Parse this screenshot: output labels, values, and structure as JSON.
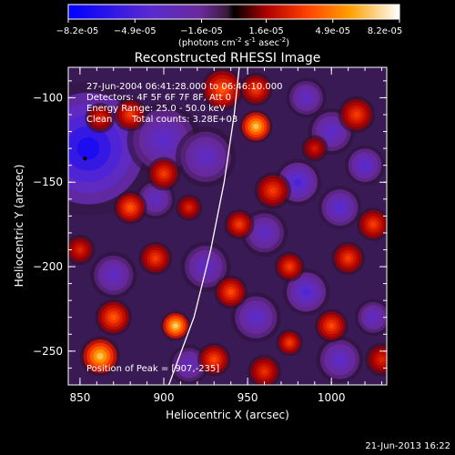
{
  "chart_data": {
    "type": "heatmap",
    "title": "Reconstructed RHESSI Image",
    "xlabel": "Heliocentric X (arcsec)",
    "ylabel": "Heliocentric Y (arcsec)",
    "xlim": [
      843,
      1033
    ],
    "ylim": [
      -270,
      -82
    ],
    "x_ticks": [
      850,
      900,
      950,
      1000
    ],
    "y_ticks": [
      -100,
      -150,
      -200,
      -250
    ],
    "colorbar": {
      "range": [
        -8.2e-05,
        8.2e-05
      ],
      "ticks": [
        "-8.2e-05",
        "-4.9e-05",
        "-1.6e-05",
        "1.6e-05",
        "4.9e-05",
        "8.2e-05"
      ],
      "unit_prefix": "(photons cm",
      "unit_exp1": "-2",
      "unit_s": " s",
      "unit_exp2": "-1",
      "unit_asec": " asec",
      "unit_exp3": "-2",
      "unit_close": ")",
      "colors": [
        "#0000ff",
        "#5a2ad0",
        "#6a2a9a",
        "#3a1a3a",
        "#000000",
        "#b00000",
        "#ff4000",
        "#ffa000",
        "#ffffff"
      ]
    },
    "annotations": {
      "time_range": "27-Jun-2004 06:41:28.000 to 06:46:10.000",
      "detectors": "Detectors: 4F 5F 6F 7F 8F, Att 0",
      "energy": "Energy Range: 25.0 - 50.0 keV",
      "clean_label": "Clean",
      "total_counts": "Total counts: 3.28E+03",
      "peak": "Position of Peak = [907,-235]"
    },
    "peak": {
      "x": 907,
      "y": -235
    },
    "marker": {
      "x": 853,
      "y": -136
    },
    "limb_curve": [
      [
        903,
        -270
      ],
      [
        918,
        -230
      ],
      [
        928,
        -190
      ],
      [
        936,
        -150
      ],
      [
        942,
        -110
      ],
      [
        945,
        -82
      ]
    ],
    "blobs": [
      {
        "x": 855,
        "y": -130,
        "v": -1.0,
        "r": 40
      },
      {
        "x": 900,
        "y": -125,
        "v": -0.55,
        "r": 22
      },
      {
        "x": 925,
        "y": -135,
        "v": -0.5,
        "r": 18
      },
      {
        "x": 980,
        "y": -150,
        "v": -0.7,
        "r": 14
      },
      {
        "x": 1000,
        "y": -120,
        "v": -0.55,
        "r": 14
      },
      {
        "x": 1005,
        "y": -165,
        "v": -0.6,
        "r": 13
      },
      {
        "x": 985,
        "y": -100,
        "v": -0.5,
        "r": 12
      },
      {
        "x": 1020,
        "y": -140,
        "v": -0.6,
        "r": 12
      },
      {
        "x": 870,
        "y": -205,
        "v": -0.5,
        "r": 14
      },
      {
        "x": 925,
        "y": -200,
        "v": -0.5,
        "r": 15
      },
      {
        "x": 955,
        "y": -230,
        "v": -0.55,
        "r": 15
      },
      {
        "x": 985,
        "y": -215,
        "v": -0.65,
        "r": 14
      },
      {
        "x": 1005,
        "y": -255,
        "v": -0.55,
        "r": 14
      },
      {
        "x": 915,
        "y": -258,
        "v": -0.45,
        "r": 12
      },
      {
        "x": 960,
        "y": -180,
        "v": -0.5,
        "r": 14
      },
      {
        "x": 895,
        "y": -160,
        "v": -0.5,
        "r": 12
      },
      {
        "x": 1025,
        "y": -230,
        "v": -0.5,
        "r": 11
      },
      {
        "x": 955,
        "y": -117,
        "v": 0.95,
        "r": 10
      },
      {
        "x": 935,
        "y": -95,
        "v": 0.6,
        "r": 13
      },
      {
        "x": 955,
        "y": -95,
        "v": 0.5,
        "r": 10
      },
      {
        "x": 880,
        "y": -110,
        "v": 0.5,
        "r": 10
      },
      {
        "x": 862,
        "y": -112,
        "v": 0.4,
        "r": 9
      },
      {
        "x": 900,
        "y": -145,
        "v": 0.5,
        "r": 10
      },
      {
        "x": 880,
        "y": -165,
        "v": 0.6,
        "r": 10
      },
      {
        "x": 915,
        "y": -165,
        "v": 0.4,
        "r": 8
      },
      {
        "x": 965,
        "y": -155,
        "v": 0.5,
        "r": 11
      },
      {
        "x": 945,
        "y": -175,
        "v": 0.5,
        "r": 9
      },
      {
        "x": 1015,
        "y": -110,
        "v": 0.5,
        "r": 11
      },
      {
        "x": 1025,
        "y": -175,
        "v": 0.5,
        "r": 10
      },
      {
        "x": 1010,
        "y": -195,
        "v": 0.5,
        "r": 10
      },
      {
        "x": 1000,
        "y": -235,
        "v": 0.55,
        "r": 10
      },
      {
        "x": 975,
        "y": -200,
        "v": 0.5,
        "r": 9
      },
      {
        "x": 940,
        "y": -215,
        "v": 0.55,
        "r": 10
      },
      {
        "x": 895,
        "y": -195,
        "v": 0.5,
        "r": 10
      },
      {
        "x": 870,
        "y": -230,
        "v": 0.6,
        "r": 11
      },
      {
        "x": 862,
        "y": -253,
        "v": 0.95,
        "r": 12
      },
      {
        "x": 907,
        "y": -235,
        "v": 1.0,
        "r": 9
      },
      {
        "x": 930,
        "y": -255,
        "v": 0.55,
        "r": 10
      },
      {
        "x": 960,
        "y": -262,
        "v": 0.45,
        "r": 10
      },
      {
        "x": 975,
        "y": -245,
        "v": 0.5,
        "r": 8
      },
      {
        "x": 1030,
        "y": -255,
        "v": 0.4,
        "r": 10
      },
      {
        "x": 850,
        "y": -190,
        "v": 0.4,
        "r": 9
      },
      {
        "x": 990,
        "y": -130,
        "v": 0.35,
        "r": 8
      }
    ]
  },
  "footer": {
    "timestamp": "21-Jun-2013 16:22"
  }
}
